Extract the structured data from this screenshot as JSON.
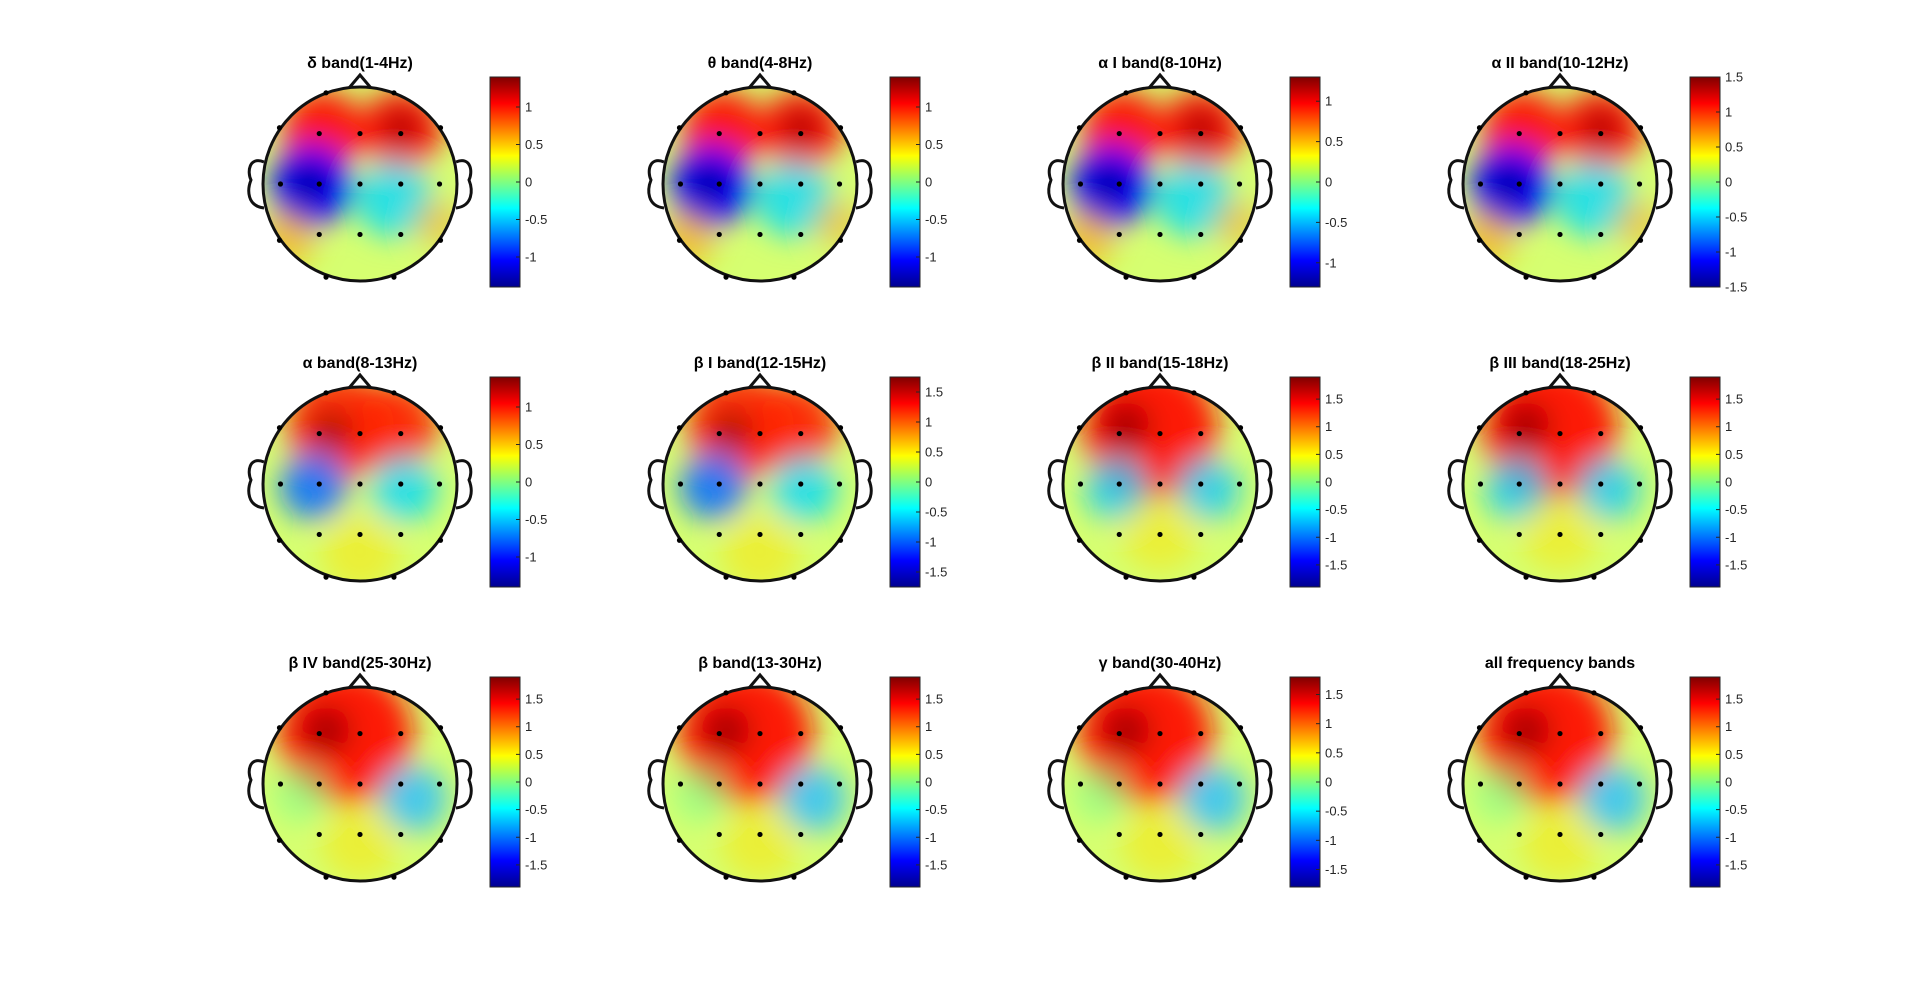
{
  "figure": {
    "background": "#ffffff"
  },
  "chart_data": [
    {
      "type": "heatmap",
      "title": "δ band(1-4Hz)",
      "clim": [
        -1.4,
        1.4
      ],
      "colorbar_ticks": [
        1,
        0.5,
        0,
        -0.5,
        -1
      ],
      "colormap": "jet",
      "map": "headA"
    },
    {
      "type": "heatmap",
      "title": "θ band(4-8Hz)",
      "clim": [
        -1.4,
        1.4
      ],
      "colorbar_ticks": [
        1,
        0.5,
        0,
        -0.5,
        -1
      ],
      "colormap": "jet",
      "map": "headA"
    },
    {
      "type": "heatmap",
      "title": "α I band(8-10Hz)",
      "clim": [
        -1.3,
        1.3
      ],
      "colorbar_ticks": [
        1,
        0.5,
        0,
        -0.5,
        -1
      ],
      "colormap": "jet",
      "map": "headA"
    },
    {
      "type": "heatmap",
      "title": "α II band(10-12Hz)",
      "clim": [
        -1.5,
        1.5
      ],
      "colorbar_ticks": [
        1.5,
        1,
        0.5,
        0,
        -0.5,
        -1,
        -1.5
      ],
      "colormap": "jet",
      "map": "headA"
    },
    {
      "type": "heatmap",
      "title": "α band(8-13Hz)",
      "clim": [
        -1.4,
        1.4
      ],
      "colorbar_ticks": [
        1,
        0.5,
        0,
        -0.5,
        -1
      ],
      "colormap": "jet",
      "map": "headB"
    },
    {
      "type": "heatmap",
      "title": "β I band(12-15Hz)",
      "clim": [
        -1.75,
        1.75
      ],
      "colorbar_ticks": [
        1.5,
        1,
        0.5,
        0,
        -0.5,
        -1,
        -1.5
      ],
      "colormap": "jet",
      "map": "headB"
    },
    {
      "type": "heatmap",
      "title": "β II band(15-18Hz)",
      "clim": [
        -1.9,
        1.9
      ],
      "colorbar_ticks": [
        1.5,
        1,
        0.5,
        0,
        -0.5,
        -1,
        -1.5
      ],
      "colormap": "jet",
      "map": "headC"
    },
    {
      "type": "heatmap",
      "title": "β III band(18-25Hz)",
      "clim": [
        -1.9,
        1.9
      ],
      "colorbar_ticks": [
        1.5,
        1,
        0.5,
        0,
        -0.5,
        -1,
        -1.5
      ],
      "colormap": "jet",
      "map": "headC"
    },
    {
      "type": "heatmap",
      "title": "β IV band(25-30Hz)",
      "clim": [
        -1.9,
        1.9
      ],
      "colorbar_ticks": [
        1.5,
        1,
        0.5,
        0,
        -0.5,
        -1,
        -1.5
      ],
      "colormap": "jet",
      "map": "headD"
    },
    {
      "type": "heatmap",
      "title": "β band(13-30Hz)",
      "clim": [
        -1.9,
        1.9
      ],
      "colorbar_ticks": [
        1.5,
        1,
        0.5,
        0,
        -0.5,
        -1,
        -1.5
      ],
      "colormap": "jet",
      "map": "headD"
    },
    {
      "type": "heatmap",
      "title": "γ band(30-40Hz)",
      "clim": [
        -1.8,
        1.8
      ],
      "colorbar_ticks": [
        1.5,
        1,
        0.5,
        0,
        -0.5,
        -1,
        -1.5
      ],
      "colormap": "jet",
      "map": "headD"
    },
    {
      "type": "heatmap",
      "title": "all frequency bands",
      "clim": [
        -1.9,
        1.9
      ],
      "colorbar_ticks": [
        1.5,
        1,
        0.5,
        0,
        -0.5,
        -1,
        -1.5
      ],
      "colormap": "jet",
      "map": "headD"
    }
  ]
}
